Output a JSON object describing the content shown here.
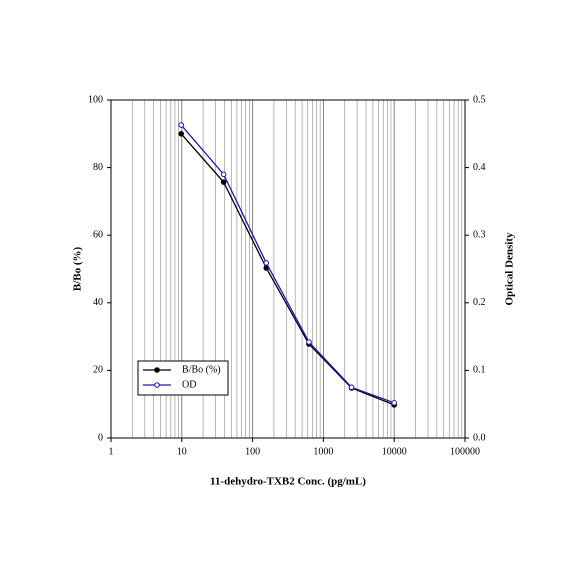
{
  "chart_data": {
    "type": "line",
    "x_label": "11-dehydro-TXB2 Conc. (pg/mL)",
    "y_label": "B/Bo (%)",
    "y2_label": "Optical Density",
    "x": [
      9.8,
      39,
      156,
      625,
      2500,
      10000
    ],
    "series": [
      {
        "name": "B/Bo (%)",
        "color": "#000000",
        "marker": "filled",
        "values": [
          90,
          75.7,
          50.3,
          27.8,
          14.8,
          9.8
        ]
      },
      {
        "name": "OD",
        "color": "#1a1aa6",
        "marker": "open",
        "axis": "y2",
        "values": [
          0.463,
          0.39,
          0.259,
          0.142,
          0.075,
          0.052
        ]
      }
    ],
    "x_log": true,
    "xlim": [
      1,
      100000
    ],
    "xticks": [
      1,
      10,
      100,
      1000,
      10000,
      100000
    ],
    "ylim": [
      0,
      100
    ],
    "yticks": [
      0,
      20,
      40,
      60,
      80,
      100
    ],
    "y2lim": [
      0,
      0.5
    ],
    "y2ticks": [
      {
        "value": 0,
        "label": "0.0"
      },
      0.1,
      0.2,
      0.3,
      0.4,
      0.5
    ],
    "grid": "x-minor",
    "legend": "lower left"
  }
}
